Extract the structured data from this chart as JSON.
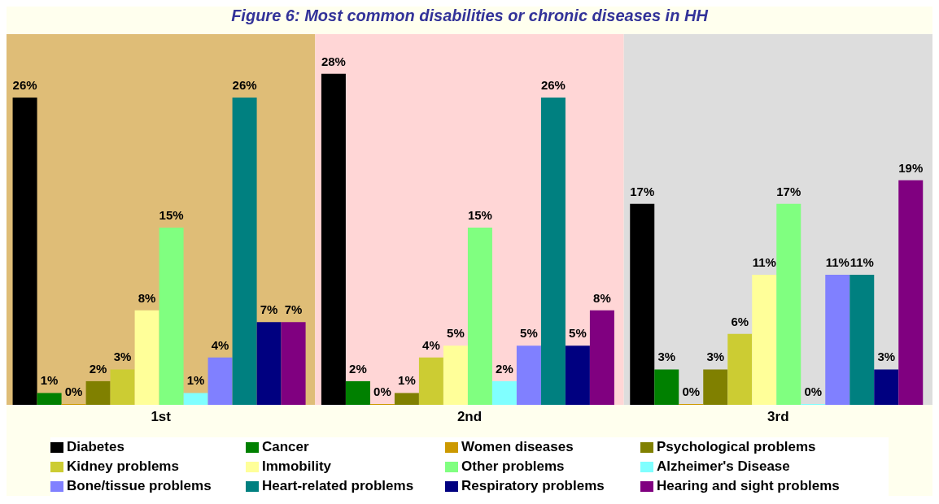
{
  "chart_data": {
    "type": "bar",
    "title": "Figure 6: Most common disabilities or chronic diseases in HH",
    "categories": [
      "1st",
      "2nd",
      "3rd"
    ],
    "legend": "bottom",
    "bands": [
      {
        "axis": "x",
        "from": "1st",
        "to": "1st",
        "color": "#dfbd77"
      },
      {
        "axis": "x",
        "from": "2nd",
        "to": "2nd",
        "color": "#ffd6d6"
      },
      {
        "axis": "x",
        "from": "3rd",
        "to": "3rd",
        "color": "#dddddd"
      }
    ],
    "series": [
      {
        "name": "Diabetes",
        "color": "#000000",
        "values": [
          26,
          28,
          17
        ],
        "value_labels": [
          "26%",
          "28%",
          "17%"
        ]
      },
      {
        "name": "Cancer",
        "color": "#008000",
        "values": [
          1,
          2,
          3
        ],
        "value_labels": [
          "1%",
          "2%",
          "3%"
        ]
      },
      {
        "name": "Women diseases",
        "color": "#cc9900",
        "values": [
          0,
          0,
          0
        ],
        "value_labels": [
          "0%",
          "0%",
          "0%"
        ]
      },
      {
        "name": "Psychological problems",
        "color": "#808000",
        "values": [
          2,
          1,
          3
        ],
        "value_labels": [
          "2%",
          "1%",
          "3%"
        ]
      },
      {
        "name": "Kidney problems",
        "color": "#cccc33",
        "values": [
          3,
          4,
          6
        ],
        "value_labels": [
          "3%",
          "4%",
          "6%"
        ]
      },
      {
        "name": "Immobility",
        "color": "#ffff99",
        "values": [
          8,
          5,
          11
        ],
        "value_labels": [
          "8%",
          "5%",
          "11%"
        ]
      },
      {
        "name": "Other problems",
        "color": "#80ff80",
        "values": [
          15,
          15,
          17
        ],
        "value_labels": [
          "15%",
          "15%",
          "17%"
        ]
      },
      {
        "name": "Alzheimer's Disease",
        "color": "#80ffff",
        "values": [
          1,
          2,
          0
        ],
        "value_labels": [
          "1%",
          "2%",
          "0%"
        ]
      },
      {
        "name": "Bone/tissue problems",
        "color": "#8080ff",
        "values": [
          4,
          5,
          11
        ],
        "value_labels": [
          "4%",
          "5%",
          "11%"
        ]
      },
      {
        "name": "Heart-related problems",
        "color": "#008080",
        "values": [
          26,
          26,
          11
        ],
        "value_labels": [
          "26%",
          "26%",
          "11%"
        ]
      },
      {
        "name": "Respiratory problems",
        "color": "#000080",
        "values": [
          7,
          5,
          3
        ],
        "value_labels": [
          "7%",
          "5%",
          "3%"
        ]
      },
      {
        "name": "Hearing and sight problems",
        "color": "#800080",
        "values": [
          7,
          8,
          19
        ],
        "value_labels": [
          "7%",
          "8%",
          "19%"
        ]
      }
    ]
  }
}
